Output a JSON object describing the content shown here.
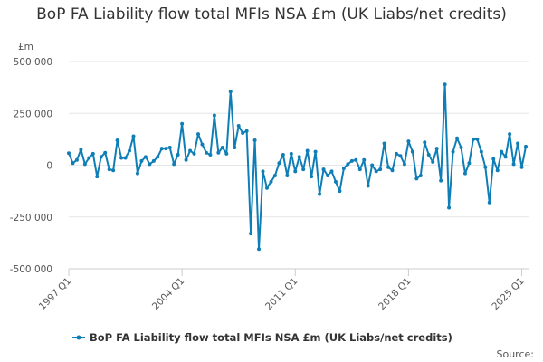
{
  "chart_data": {
    "type": "line",
    "title": "BoP FA Liability flow total MFIs NSA £m (UK Liabs/net credits)",
    "ylabel": "£m",
    "xlabel": "",
    "ylim": [
      -500000,
      500000
    ],
    "y_ticks": [
      500000,
      250000,
      0,
      -250000,
      -500000
    ],
    "y_tick_labels": [
      "500 000",
      "250 000",
      "0",
      "-250 000",
      "-500 000"
    ],
    "x_tick_labels": [
      "1997 Q1",
      "2004 Q1",
      "2011 Q1",
      "2018 Q1",
      "2025 Q1"
    ],
    "x_tick_index": [
      0,
      28,
      56,
      84,
      112
    ],
    "grid": "horizontal",
    "legend": "bottom",
    "source": "Source:",
    "color": "#0f7eb7",
    "series": [
      {
        "name": "BoP FA Liability flow total MFIs NSA £m (UK Liabs/net credits)",
        "values": [
          58000,
          10000,
          25000,
          75000,
          5000,
          35000,
          55000,
          -55000,
          40000,
          60000,
          -20000,
          -25000,
          120000,
          35000,
          35000,
          70000,
          140000,
          -40000,
          20000,
          40000,
          5000,
          20000,
          40000,
          80000,
          80000,
          85000,
          5000,
          50000,
          200000,
          25000,
          70000,
          55000,
          150000,
          100000,
          60000,
          50000,
          240000,
          60000,
          85000,
          55000,
          355000,
          85000,
          190000,
          155000,
          165000,
          -330000,
          120000,
          -405000,
          -30000,
          -110000,
          -80000,
          -50000,
          10000,
          50000,
          -50000,
          55000,
          -30000,
          40000,
          -20000,
          70000,
          -55000,
          65000,
          -140000,
          -20000,
          -50000,
          -30000,
          -80000,
          -125000,
          -15000,
          5000,
          20000,
          25000,
          -20000,
          25000,
          -100000,
          0,
          -30000,
          -20000,
          105000,
          -10000,
          -25000,
          55000,
          45000,
          5000,
          115000,
          65000,
          -65000,
          -50000,
          110000,
          50000,
          15000,
          80000,
          -75000,
          390000,
          -205000,
          65000,
          130000,
          85000,
          -40000,
          10000,
          125000,
          125000,
          65000,
          -10000,
          -180000,
          30000,
          -25000,
          65000,
          40000,
          150000,
          5000,
          105000,
          -10000,
          90000
        ]
      }
    ]
  }
}
